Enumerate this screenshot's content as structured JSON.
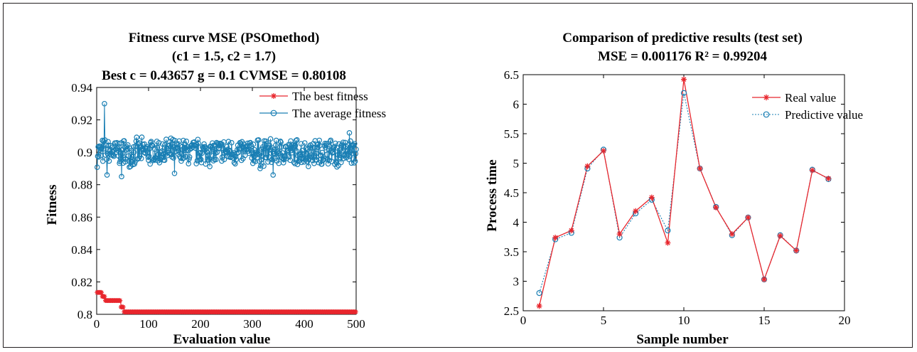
{
  "colors": {
    "red": "#e8262d",
    "blue": "#1a7fb4",
    "frame": "#231f20"
  },
  "chart_data": [
    {
      "type": "line",
      "title_lines": [
        "Fitness curve MSE (PSOmethod)",
        "(c1 = 1.5, c2 = 1.7)",
        "Best c = 0.43657 g = 0.1 CVMSE = 0.80108"
      ],
      "xlabel": "Evaluation value",
      "ylabel": "Fitness",
      "xlim": [
        0,
        500
      ],
      "ylim": [
        0.8,
        0.94
      ],
      "xticks": [
        "0",
        "100",
        "200",
        "300",
        "400",
        "500"
      ],
      "yticks": [
        "0.8",
        "0.82",
        "0.84",
        "0.86",
        "0.88",
        "0.9",
        "0.92",
        "0.94"
      ],
      "legend": [
        "The best fitness",
        "The average fitness"
      ],
      "legend_position": "top-right",
      "grid": false,
      "series": [
        {
          "name": "The best fitness",
          "color": "#e8262d",
          "marker": "asterisk",
          "x": [
            1,
            50
          ],
          "y": [
            0.8135,
            0.8015
          ],
          "step_points": [
            [
              1,
              0.8135
            ],
            [
              10,
              0.8135
            ],
            [
              11,
              0.811
            ],
            [
              15,
              0.811
            ],
            [
              16,
              0.8085
            ],
            [
              46,
              0.8085
            ],
            [
              47,
              0.8045
            ],
            [
              52,
              0.8045
            ],
            [
              53,
              0.8015
            ],
            [
              500,
              0.8015
            ]
          ]
        },
        {
          "name": "The average fitness",
          "color": "#1a7fb4",
          "marker": "circle",
          "x_range": [
            1,
            500
          ],
          "mean": 0.9,
          "band": [
            0.892,
            0.908
          ],
          "notable_points": [
            [
              15,
              0.93
            ],
            [
              20,
              0.886
            ],
            [
              48,
              0.885
            ],
            [
              150,
              0.887
            ],
            [
              315,
              0.89
            ],
            [
              340,
              0.886
            ],
            [
              463,
              0.891
            ],
            [
              487,
              0.912
            ]
          ]
        }
      ]
    },
    {
      "type": "line",
      "title_lines": [
        "Comparison of predictive results (test set)",
        "MSE = 0.001176 R² = 0.99204"
      ],
      "xlabel": "Sample number",
      "ylabel": "Process time",
      "xlim": [
        0,
        20
      ],
      "ylim": [
        2.5,
        6.5
      ],
      "xticks": [
        "0",
        "5",
        "10",
        "15",
        "20"
      ],
      "yticks": [
        "2.5",
        "3",
        "3.5",
        "4",
        "4.5",
        "5",
        "5.5",
        "6",
        "6.5"
      ],
      "legend": [
        "Real value",
        "Predictive value"
      ],
      "legend_position": "top-right",
      "grid": false,
      "series": [
        {
          "name": "Real value",
          "color": "#e8262d",
          "marker": "asterisk",
          "x": [
            1,
            2,
            3,
            4,
            5,
            6,
            7,
            8,
            9,
            10,
            11,
            12,
            13,
            14,
            15,
            16,
            17,
            18,
            19
          ],
          "y": [
            2.58,
            3.74,
            3.86,
            4.95,
            5.21,
            3.8,
            4.19,
            4.42,
            3.65,
            6.42,
            4.91,
            4.25,
            3.8,
            4.08,
            3.03,
            3.77,
            3.52,
            4.88,
            4.74
          ]
        },
        {
          "name": "Predictive value",
          "color": "#1a7fb4",
          "marker": "circle",
          "x": [
            1,
            2,
            3,
            4,
            5,
            6,
            7,
            8,
            9,
            10,
            11,
            12,
            13,
            14,
            15,
            16,
            17,
            18,
            19
          ],
          "y": [
            2.8,
            3.71,
            3.82,
            4.91,
            5.23,
            3.74,
            4.15,
            4.38,
            3.86,
            6.19,
            4.91,
            4.26,
            3.78,
            4.08,
            3.03,
            3.78,
            3.52,
            4.89,
            4.73
          ]
        }
      ]
    }
  ]
}
